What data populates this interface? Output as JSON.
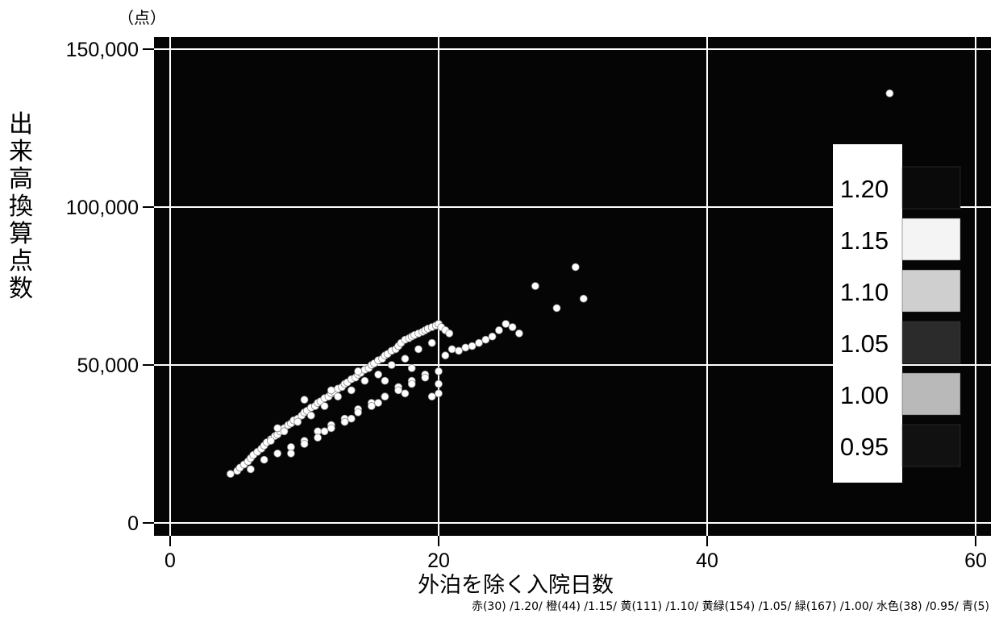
{
  "unit_label": "（点）",
  "footnote": "赤(30) /1.20/ 橙(44) /1.15/ 黄(111) /1.10/ 黄緑(154) /1.05/ 緑(167) /1.00/ 水色(38) /0.95/ 青(5)",
  "chart_data": {
    "type": "scatter",
    "xlabel": "外泊を除く入院日数",
    "ylabel": "出来高換算点数",
    "xlim": [
      0,
      60
    ],
    "ylim": [
      0,
      150000
    ],
    "xticks": [
      "0",
      "20",
      "40",
      "60"
    ],
    "yticks": [
      "0",
      "50,000",
      "100,000",
      "150,000"
    ],
    "grid": true,
    "background": "#050505",
    "point_color": "#ffffff",
    "legend": {
      "placement": "right",
      "labels": [
        "1.20",
        "1.15",
        "1.10",
        "1.05",
        "1.00",
        "0.95"
      ]
    },
    "series": [
      {
        "x": [
          4.5,
          5.0,
          5.2,
          5.5,
          5.8,
          6.0,
          6.2,
          6.5,
          6.8,
          7.0,
          7.2,
          7.5,
          7.8,
          8.0,
          8.2,
          8.5,
          8.8,
          9.0,
          9.2,
          9.5,
          9.8,
          10.0,
          10.2,
          10.5,
          10.8,
          11.0,
          11.2,
          11.5,
          11.8,
          12.0,
          12.2,
          12.5,
          12.8,
          13.0,
          13.2,
          13.5,
          13.8,
          14.0,
          14.2,
          14.5,
          14.8,
          15.0,
          15.2,
          15.5,
          15.8,
          16.0,
          16.2,
          16.5,
          16.8,
          17.0,
          17.2,
          17.5,
          17.8,
          18.0,
          18.2,
          18.5,
          18.8,
          19.0,
          19.2,
          19.5,
          19.8,
          20.0,
          20.2,
          20.5,
          20.8,
          21.0,
          21.5,
          22.0,
          22.5,
          23.0,
          23.5,
          24.0,
          24.5,
          25.0,
          25.5,
          26.0,
          27.2,
          28.8,
          30.2,
          30.8,
          53.6,
          6.0,
          7.0,
          8.0,
          9.0,
          10.0,
          11.0,
          12.0,
          13.0,
          14.0,
          15.0,
          16.0,
          17.0,
          18.0,
          19.0,
          20.0,
          7.5,
          8.5,
          9.5,
          10.5,
          11.5,
          12.5,
          13.5,
          14.5,
          15.5,
          16.5,
          17.5,
          18.5,
          19.5,
          20.5,
          9.0,
          10.0,
          11.0,
          12.0,
          13.0,
          14.0,
          15.0,
          16.0,
          17.0,
          18.0,
          19.0,
          20.0,
          8.0,
          10.0,
          12.0,
          14.0,
          16.0,
          18.0,
          20.0,
          11.5,
          13.5,
          15.5,
          17.5,
          19.5
        ],
        "y": [
          15500,
          16500,
          17500,
          18500,
          19500,
          20500,
          21500,
          22500,
          23500,
          24500,
          25500,
          26500,
          27500,
          28000,
          29000,
          30000,
          31000,
          31500,
          32500,
          33000,
          34000,
          35000,
          35500,
          36500,
          37000,
          38000,
          38500,
          39500,
          40000,
          41000,
          41500,
          42500,
          43000,
          44000,
          44500,
          45500,
          46000,
          47000,
          47500,
          48500,
          49000,
          50000,
          50500,
          51500,
          52000,
          53000,
          53500,
          54500,
          55000,
          56000,
          57000,
          58000,
          58500,
          59000,
          59500,
          60000,
          60500,
          61000,
          61500,
          62000,
          62500,
          63000,
          62000,
          61000,
          60000,
          55000,
          54500,
          55500,
          56000,
          57000,
          58000,
          59000,
          61000,
          63000,
          62000,
          60000,
          75000,
          68000,
          81000,
          71000,
          136000,
          17000,
          20000,
          22000,
          24000,
          26000,
          29000,
          31000,
          33000,
          36000,
          38000,
          40000,
          43000,
          45000,
          47000,
          48000,
          26000,
          29000,
          32000,
          34000,
          37000,
          40000,
          42000,
          45000,
          47000,
          50000,
          52000,
          55000,
          57000,
          53000,
          22000,
          25000,
          27000,
          30000,
          32000,
          35000,
          37000,
          40000,
          42000,
          44000,
          46000,
          41000,
          30000,
          39000,
          42000,
          48000,
          45000,
          49000,
          44000,
          29000,
          33000,
          38000,
          41000,
          40000
        ]
      }
    ]
  }
}
